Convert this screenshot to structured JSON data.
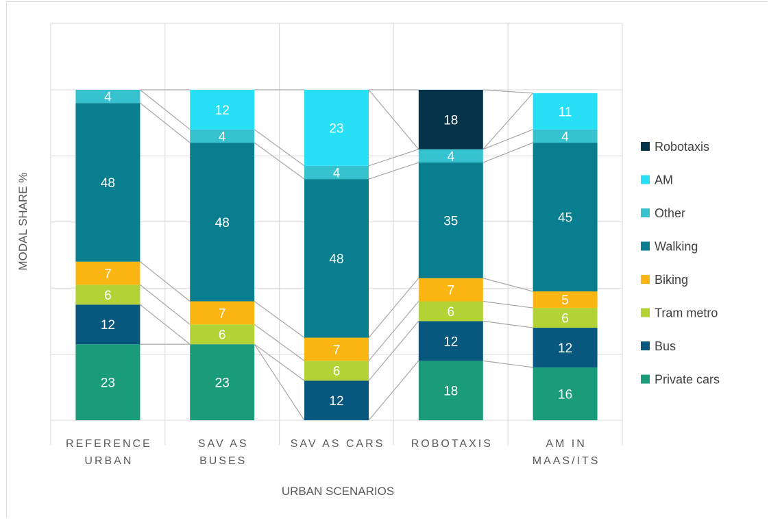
{
  "chart_data": {
    "type": "bar",
    "stacked": true,
    "xlabel": "URBAN SCENARIOS",
    "ylabel": "MODAL SHARE %",
    "ylim": [
      0,
      100
    ],
    "legend_placement": "right",
    "grid": true,
    "categories": [
      [
        "REFERENCE",
        "URBAN"
      ],
      [
        "SAV AS",
        "BUSES"
      ],
      [
        "SAV AS CARS"
      ],
      [
        "ROBOTAXIS"
      ],
      [
        "AM IN",
        "MAAS/ITS"
      ]
    ],
    "series": [
      {
        "name": "Private cars",
        "color": "#1a9c7b",
        "values": [
          23,
          23,
          0,
          18,
          16
        ]
      },
      {
        "name": "Bus",
        "color": "#08577f",
        "values": [
          12,
          0,
          12,
          12,
          12
        ]
      },
      {
        "name": "Tram metro",
        "color": "#b2d235",
        "values": [
          6,
          6,
          6,
          6,
          6
        ]
      },
      {
        "name": "Biking",
        "color": "#fcb614",
        "values": [
          7,
          7,
          7,
          7,
          5
        ]
      },
      {
        "name": "Walking",
        "color": "#087e8f",
        "values": [
          48,
          48,
          48,
          35,
          45
        ]
      },
      {
        "name": "Other",
        "color": "#36c2ce",
        "values": [
          4,
          4,
          4,
          4,
          4
        ]
      },
      {
        "name": "AM",
        "color": "#27e0f5",
        "values": [
          0,
          12,
          23,
          0,
          11
        ]
      },
      {
        "name": "Robotaxis",
        "color": "#05344a",
        "values": [
          0,
          0,
          0,
          18,
          0
        ]
      }
    ]
  }
}
